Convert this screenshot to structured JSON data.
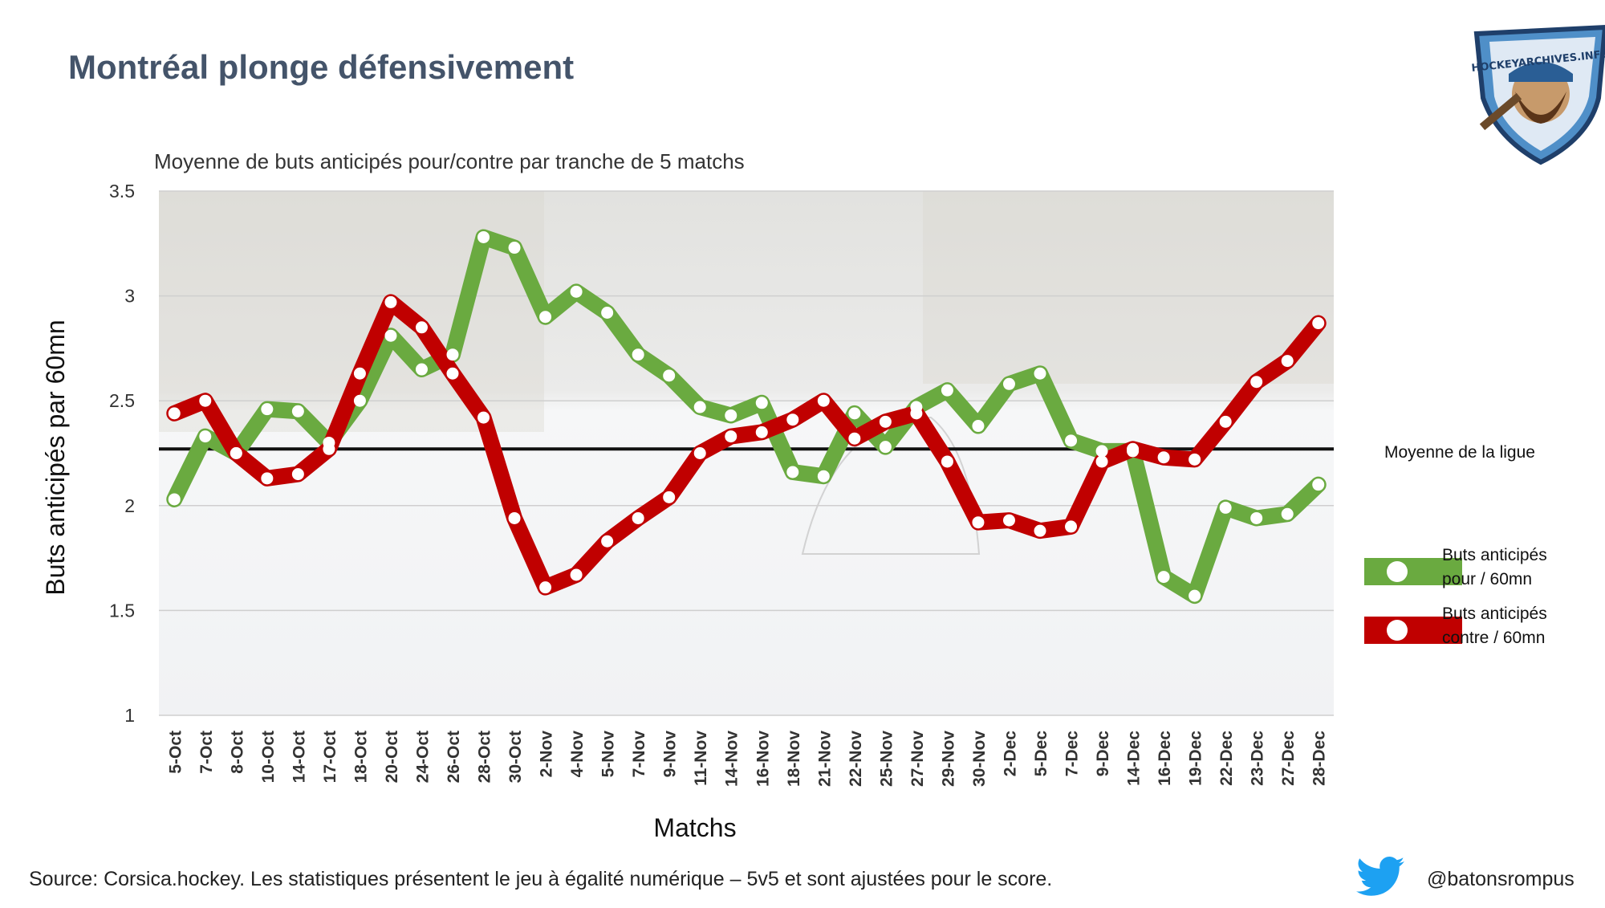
{
  "title": "Montréal plonge défensivement",
  "source": "Source: Corsica.hockey. Les statistiques présentent le jeu à égalité numérique – 5v5 et sont ajustées pour le score.",
  "handle": "@batonsrompus",
  "logo_text": "HOCKEYARCHIVES.INFO",
  "colors": {
    "pour": "#6aaa40",
    "contre": "#c00000",
    "average": "#111111",
    "title": "#44546a",
    "twitter": "#1da1f2"
  },
  "chart_data": {
    "type": "line",
    "title": "Moyenne de buts anticipés pour/contre par tranche de 5 matchs",
    "xlabel": "Matchs",
    "ylabel": "Buts anticipés par 60mn",
    "ylim": [
      1,
      3.5
    ],
    "yticks": [
      "1",
      "1.5",
      "2",
      "2.5",
      "3",
      "3.5"
    ],
    "grid": true,
    "legend_position": "right",
    "categories": [
      "5-Oct",
      "7-Oct",
      "8-Oct",
      "10-Oct",
      "14-Oct",
      "17-Oct",
      "18-Oct",
      "20-Oct",
      "24-Oct",
      "26-Oct",
      "28-Oct",
      "30-Oct",
      "2-Nov",
      "4-Nov",
      "5-Nov",
      "7-Nov",
      "9-Nov",
      "11-Nov",
      "14-Nov",
      "16-Nov",
      "18-Nov",
      "21-Nov",
      "22-Nov",
      "25-Nov",
      "27-Nov",
      "29-Nov",
      "30-Nov",
      "2-Dec",
      "5-Dec",
      "7-Dec",
      "9-Dec",
      "14-Dec",
      "16-Dec",
      "19-Dec",
      "22-Dec",
      "23-Dec",
      "27-Dec",
      "28-Dec"
    ],
    "series": [
      {
        "name": "Buts anticipés pour / 60mn",
        "color": "#6aaa40",
        "values": [
          2.03,
          2.33,
          2.25,
          2.46,
          2.45,
          2.3,
          2.5,
          2.81,
          2.65,
          2.72,
          3.28,
          3.23,
          2.9,
          3.02,
          2.92,
          2.72,
          2.62,
          2.47,
          2.43,
          2.49,
          2.16,
          2.14,
          2.44,
          2.28,
          2.47,
          2.55,
          2.38,
          2.58,
          2.63,
          2.31,
          2.26,
          2.26,
          1.66,
          1.57,
          1.99,
          1.94,
          1.96,
          2.1
        ]
      },
      {
        "name": "Buts anticipés contre / 60mn",
        "color": "#c00000",
        "values": [
          2.44,
          2.5,
          2.25,
          2.13,
          2.15,
          2.27,
          2.63,
          2.97,
          2.85,
          2.63,
          2.42,
          1.94,
          1.61,
          1.67,
          1.83,
          1.94,
          2.04,
          2.25,
          2.33,
          2.35,
          2.41,
          2.5,
          2.32,
          2.4,
          2.44,
          2.21,
          1.92,
          1.93,
          1.88,
          1.9,
          2.21,
          2.27,
          2.23,
          2.22,
          2.4,
          2.59,
          2.69,
          2.87
        ]
      }
    ],
    "reference_line": {
      "label": "Moyenne de la ligue",
      "value": 2.27
    }
  }
}
